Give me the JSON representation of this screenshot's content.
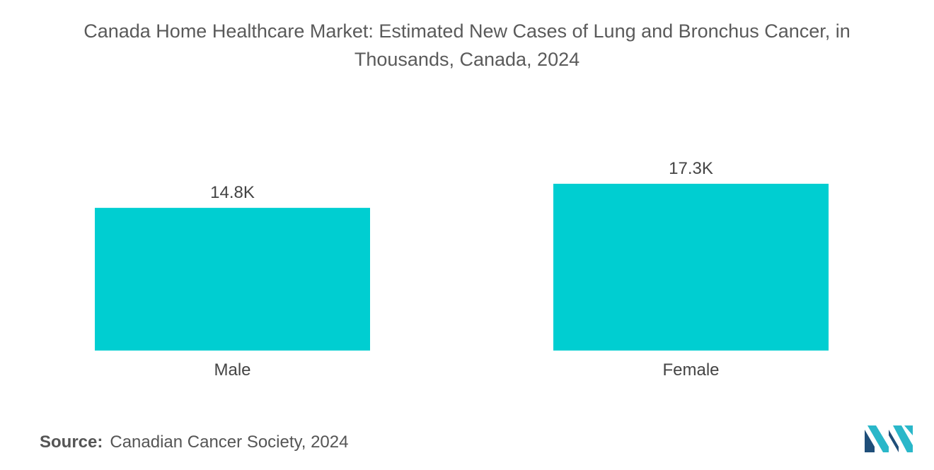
{
  "chart_data": {
    "type": "bar",
    "title_lines": [
      "Canada Home Healthcare Market: Estimated New Cases of Lung and Bronchus Cancer, in",
      "Thousands, Canada, 2024"
    ],
    "categories": [
      "Male",
      "Female"
    ],
    "values": [
      14.8,
      17.3
    ],
    "data_labels": [
      "14.8K",
      "17.3K"
    ],
    "xlabel": "",
    "ylabel": "",
    "ylim": [
      0,
      17.3
    ],
    "grid": false,
    "legend": "none"
  },
  "source": {
    "label": "Source:",
    "text": "Canadian Cancer Society, 2024"
  },
  "colors": {
    "bar": "#00ced1",
    "text": "#555555",
    "logo_dark": "#1f4e79",
    "logo_light": "#2ab7c9"
  },
  "icons": {
    "logo": "mordor-intelligence-logo"
  }
}
